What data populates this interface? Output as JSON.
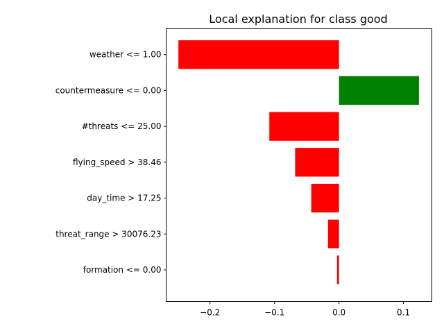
{
  "chart_data": {
    "type": "bar",
    "orientation": "horizontal",
    "title": "Local explanation for class good",
    "xlabel": "",
    "ylabel": "",
    "grid": false,
    "xlim": [
      -0.268,
      0.144
    ],
    "xticks": [
      -0.2,
      -0.1,
      0.0,
      0.1
    ],
    "xtick_labels": [
      "−0.2",
      "−0.1",
      "0.0",
      "0.1"
    ],
    "positive_color": "#008000",
    "negative_color": "#ff0000",
    "bars": [
      {
        "label": "weather <= 1.00",
        "value": -0.249
      },
      {
        "label": "countermeasure <= 0.00",
        "value": 0.124
      },
      {
        "label": "#threats <= 25.00",
        "value": -0.108
      },
      {
        "label": "flying_speed > 38.46",
        "value": -0.068
      },
      {
        "label": "day_time > 17.25",
        "value": -0.043
      },
      {
        "label": "threat_range > 30076.23",
        "value": -0.017
      },
      {
        "label": "formation <= 0.00",
        "value": -0.003
      }
    ]
  }
}
